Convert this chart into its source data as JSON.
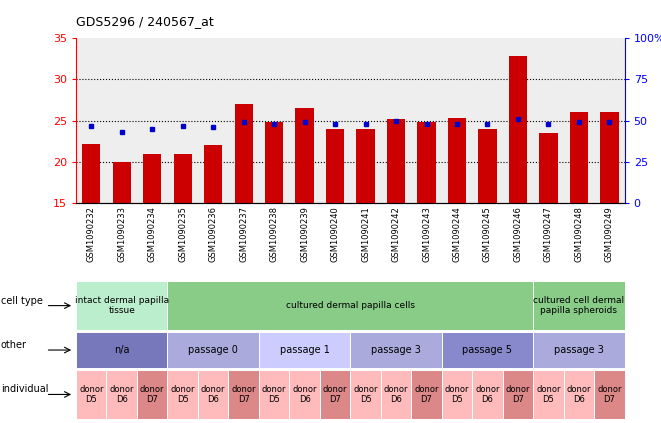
{
  "title": "GDS5296 / 240567_at",
  "samples": [
    "GSM1090232",
    "GSM1090233",
    "GSM1090234",
    "GSM1090235",
    "GSM1090236",
    "GSM1090237",
    "GSM1090238",
    "GSM1090239",
    "GSM1090240",
    "GSM1090241",
    "GSM1090242",
    "GSM1090243",
    "GSM1090244",
    "GSM1090245",
    "GSM1090246",
    "GSM1090247",
    "GSM1090248",
    "GSM1090249"
  ],
  "counts": [
    22.2,
    20.0,
    21.0,
    21.0,
    22.0,
    27.0,
    24.8,
    26.5,
    24.0,
    24.0,
    25.2,
    24.8,
    25.3,
    24.0,
    32.8,
    23.5,
    26.0,
    26.0
  ],
  "percentiles": [
    47,
    43,
    45,
    47,
    46,
    49,
    48,
    49,
    48,
    48,
    50,
    48,
    48,
    48,
    51,
    48,
    49,
    49
  ],
  "ylim_left": [
    15,
    35
  ],
  "ylim_right": [
    0,
    100
  ],
  "yticks_left": [
    15,
    20,
    25,
    30,
    35
  ],
  "yticks_right": [
    0,
    25,
    50,
    75,
    100
  ],
  "bar_color": "#CC0000",
  "dot_color": "#0000CC",
  "grid_values": [
    20,
    25,
    30
  ],
  "cell_type_groups": [
    {
      "label": "intact dermal papilla\ntissue",
      "start": 0,
      "end": 3,
      "color": "#bbeecc"
    },
    {
      "label": "cultured dermal papilla cells",
      "start": 3,
      "end": 15,
      "color": "#88cc88"
    },
    {
      "label": "cultured cell dermal\npapilla spheroids",
      "start": 15,
      "end": 18,
      "color": "#88cc88"
    }
  ],
  "other_groups": [
    {
      "label": "n/a",
      "start": 0,
      "end": 3,
      "color": "#7777bb"
    },
    {
      "label": "passage 0",
      "start": 3,
      "end": 6,
      "color": "#aaaadd"
    },
    {
      "label": "passage 1",
      "start": 6,
      "end": 9,
      "color": "#ccccff"
    },
    {
      "label": "passage 3",
      "start": 9,
      "end": 12,
      "color": "#aaaadd"
    },
    {
      "label": "passage 5",
      "start": 12,
      "end": 15,
      "color": "#8888cc"
    },
    {
      "label": "passage 3",
      "start": 15,
      "end": 18,
      "color": "#aaaadd"
    }
  ],
  "individual_groups": [
    {
      "label": "donor\nD5",
      "start": 0,
      "end": 1,
      "color": "#ffbbbb"
    },
    {
      "label": "donor\nD6",
      "start": 1,
      "end": 2,
      "color": "#ffbbbb"
    },
    {
      "label": "donor\nD7",
      "start": 2,
      "end": 3,
      "color": "#dd8888"
    },
    {
      "label": "donor\nD5",
      "start": 3,
      "end": 4,
      "color": "#ffbbbb"
    },
    {
      "label": "donor\nD6",
      "start": 4,
      "end": 5,
      "color": "#ffbbbb"
    },
    {
      "label": "donor\nD7",
      "start": 5,
      "end": 6,
      "color": "#dd8888"
    },
    {
      "label": "donor\nD5",
      "start": 6,
      "end": 7,
      "color": "#ffbbbb"
    },
    {
      "label": "donor\nD6",
      "start": 7,
      "end": 8,
      "color": "#ffbbbb"
    },
    {
      "label": "donor\nD7",
      "start": 8,
      "end": 9,
      "color": "#dd8888"
    },
    {
      "label": "donor\nD5",
      "start": 9,
      "end": 10,
      "color": "#ffbbbb"
    },
    {
      "label": "donor\nD6",
      "start": 10,
      "end": 11,
      "color": "#ffbbbb"
    },
    {
      "label": "donor\nD7",
      "start": 11,
      "end": 12,
      "color": "#dd8888"
    },
    {
      "label": "donor\nD5",
      "start": 12,
      "end": 13,
      "color": "#ffbbbb"
    },
    {
      "label": "donor\nD6",
      "start": 13,
      "end": 14,
      "color": "#ffbbbb"
    },
    {
      "label": "donor\nD7",
      "start": 14,
      "end": 15,
      "color": "#dd8888"
    },
    {
      "label": "donor\nD5",
      "start": 15,
      "end": 16,
      "color": "#ffbbbb"
    },
    {
      "label": "donor\nD6",
      "start": 16,
      "end": 17,
      "color": "#ffbbbb"
    },
    {
      "label": "donor\nD7",
      "start": 17,
      "end": 18,
      "color": "#dd8888"
    }
  ]
}
